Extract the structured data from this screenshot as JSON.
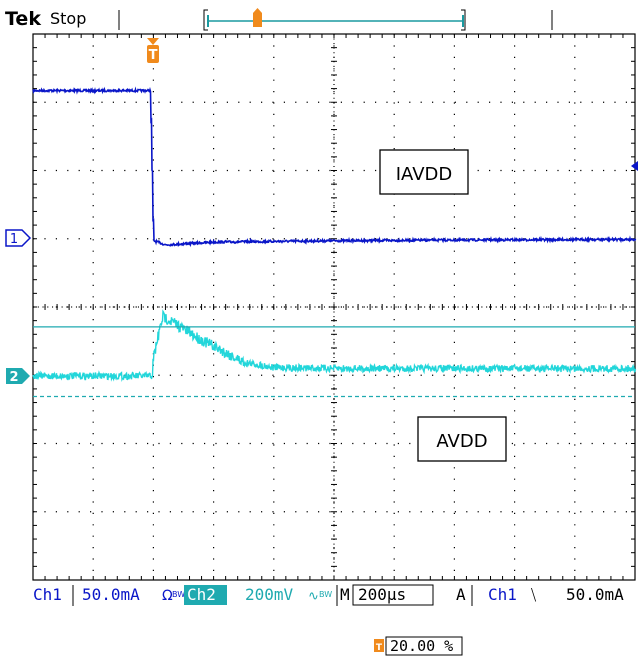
{
  "header": {
    "brand": "Tek",
    "status": "Stop"
  },
  "trigger_marker": "T",
  "channel_markers": {
    "ch1": "1",
    "ch2": "2"
  },
  "annotations": {
    "iavdd": "IAVDD",
    "avdd": "AVDD"
  },
  "status_bar": {
    "ch1_label": "Ch1",
    "ch1_scale": "50.0mA",
    "ch1_flags": "Ω",
    "ch1_bw": "BW",
    "ch2_label": "Ch2",
    "ch2_scale": "200mV",
    "ch2_flags": "∿",
    "ch2_bw": "BW",
    "timebase_prefix": "M",
    "timebase": "200µs",
    "trigger_mode": "A",
    "trigger_source": "Ch1",
    "trigger_slope": "⧹",
    "trigger_level": "50.0mA"
  },
  "trigger_position": "20.00 %",
  "colors": {
    "ch1": "#0a16c8",
    "ch2": "#22d6da",
    "trigger": "#f08a1c",
    "grid": "#000000",
    "ch2_label_bg": "#1faab0"
  },
  "chart_data": {
    "type": "line",
    "title": "",
    "xlabel": "",
    "ylabel": "",
    "grid": true,
    "x_unit": "µs",
    "x_divisions": 10,
    "y_divisions": 8,
    "x_per_div": 200,
    "trigger_time": 0,
    "xlim": [
      -400,
      1600
    ],
    "series": [
      {
        "name": "IAVDD",
        "channel": "Ch1",
        "unit": "mA",
        "per_div": 50,
        "x": [
          -400,
          -10,
          0,
          40,
          200,
          600,
          1000,
          1600
        ],
        "y": [
          108,
          108,
          -2,
          -5,
          -3,
          -2,
          -1.5,
          -1
        ]
      },
      {
        "name": "AVDD",
        "channel": "Ch2",
        "unit": "mV",
        "per_div": 200,
        "x": [
          -400,
          -5,
          0,
          30,
          60,
          150,
          300,
          400,
          600,
          1000,
          1600
        ],
        "y": [
          0,
          0,
          55,
          175,
          160,
          110,
          40,
          25,
          22,
          22,
          22
        ]
      }
    ]
  }
}
